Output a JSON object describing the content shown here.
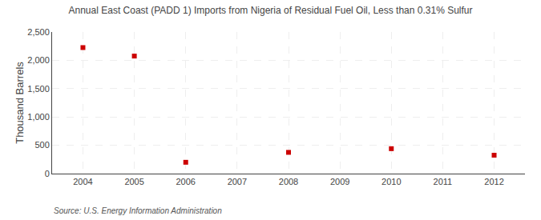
{
  "chart_data": {
    "type": "scatter",
    "title": "Annual East Coast (PADD 1) Imports from Nigeria of Residual Fuel Oil, Less than 0.31% Sulfur",
    "ylabel": "Thousand Barrels",
    "annotations": [
      "Source: U.S. Energy Information Administration"
    ],
    "x": [
      2004,
      2005,
      2006,
      2008,
      2010,
      2012
    ],
    "values": [
      2225,
      2075,
      200,
      375,
      440,
      325
    ],
    "color": "#cc0000",
    "marker": "square",
    "xlim": [
      2003.4,
      2012.6
    ],
    "ylim": [
      0,
      2500
    ],
    "xticks": [
      2004,
      2005,
      2006,
      2007,
      2008,
      2009,
      2010,
      2011,
      2012
    ],
    "yticks": [
      0,
      500,
      {
        "value": 1000,
        "label": "1,000"
      },
      {
        "value": 1500,
        "label": "1,500"
      },
      {
        "value": 2000,
        "label": "2,000"
      },
      {
        "value": 2500,
        "label": "2,500"
      }
    ],
    "grid": true
  }
}
